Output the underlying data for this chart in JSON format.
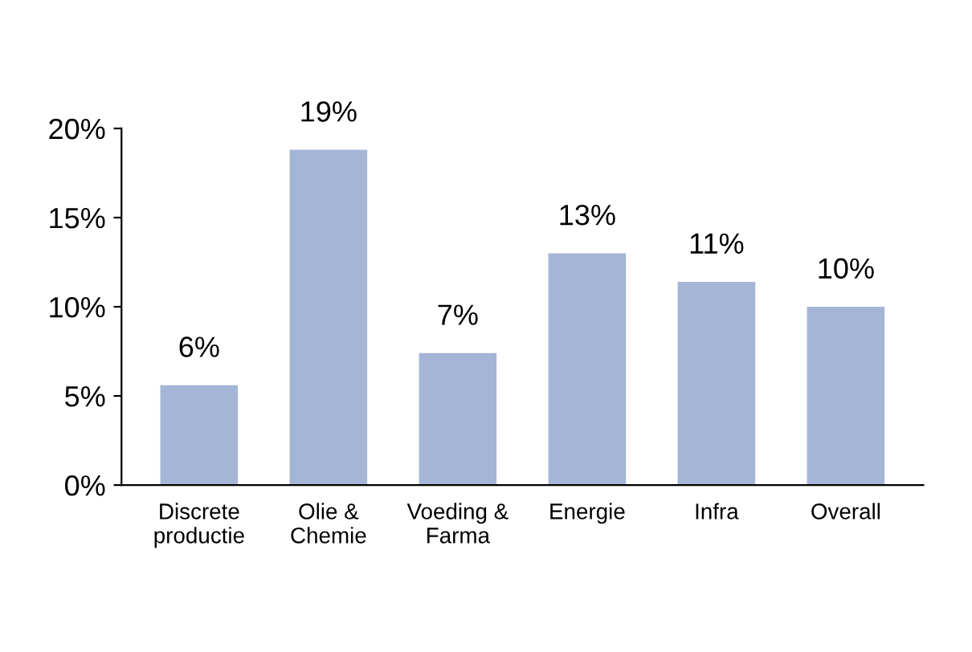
{
  "chart_data": {
    "type": "bar",
    "categories": [
      "Discrete\nproductie",
      "Olie &\nChemie",
      "Voeding &\nFarma",
      "Energie",
      "Infra",
      "Overall"
    ],
    "values": [
      5.6,
      18.8,
      7.4,
      13.0,
      11.4,
      10.0
    ],
    "value_labels": [
      "6%",
      "19%",
      "7%",
      "13%",
      "11%",
      "10%"
    ],
    "color": "#a5b5d6",
    "ylim": [
      0,
      20
    ],
    "yticks": [
      {
        "value": 0,
        "label": "0%"
      },
      {
        "value": 5,
        "label": "5%"
      },
      {
        "value": 10,
        "label": "10%"
      },
      {
        "value": 15,
        "label": "15%"
      },
      {
        "value": 20,
        "label": "20%"
      }
    ],
    "grid": false,
    "legend": false
  }
}
